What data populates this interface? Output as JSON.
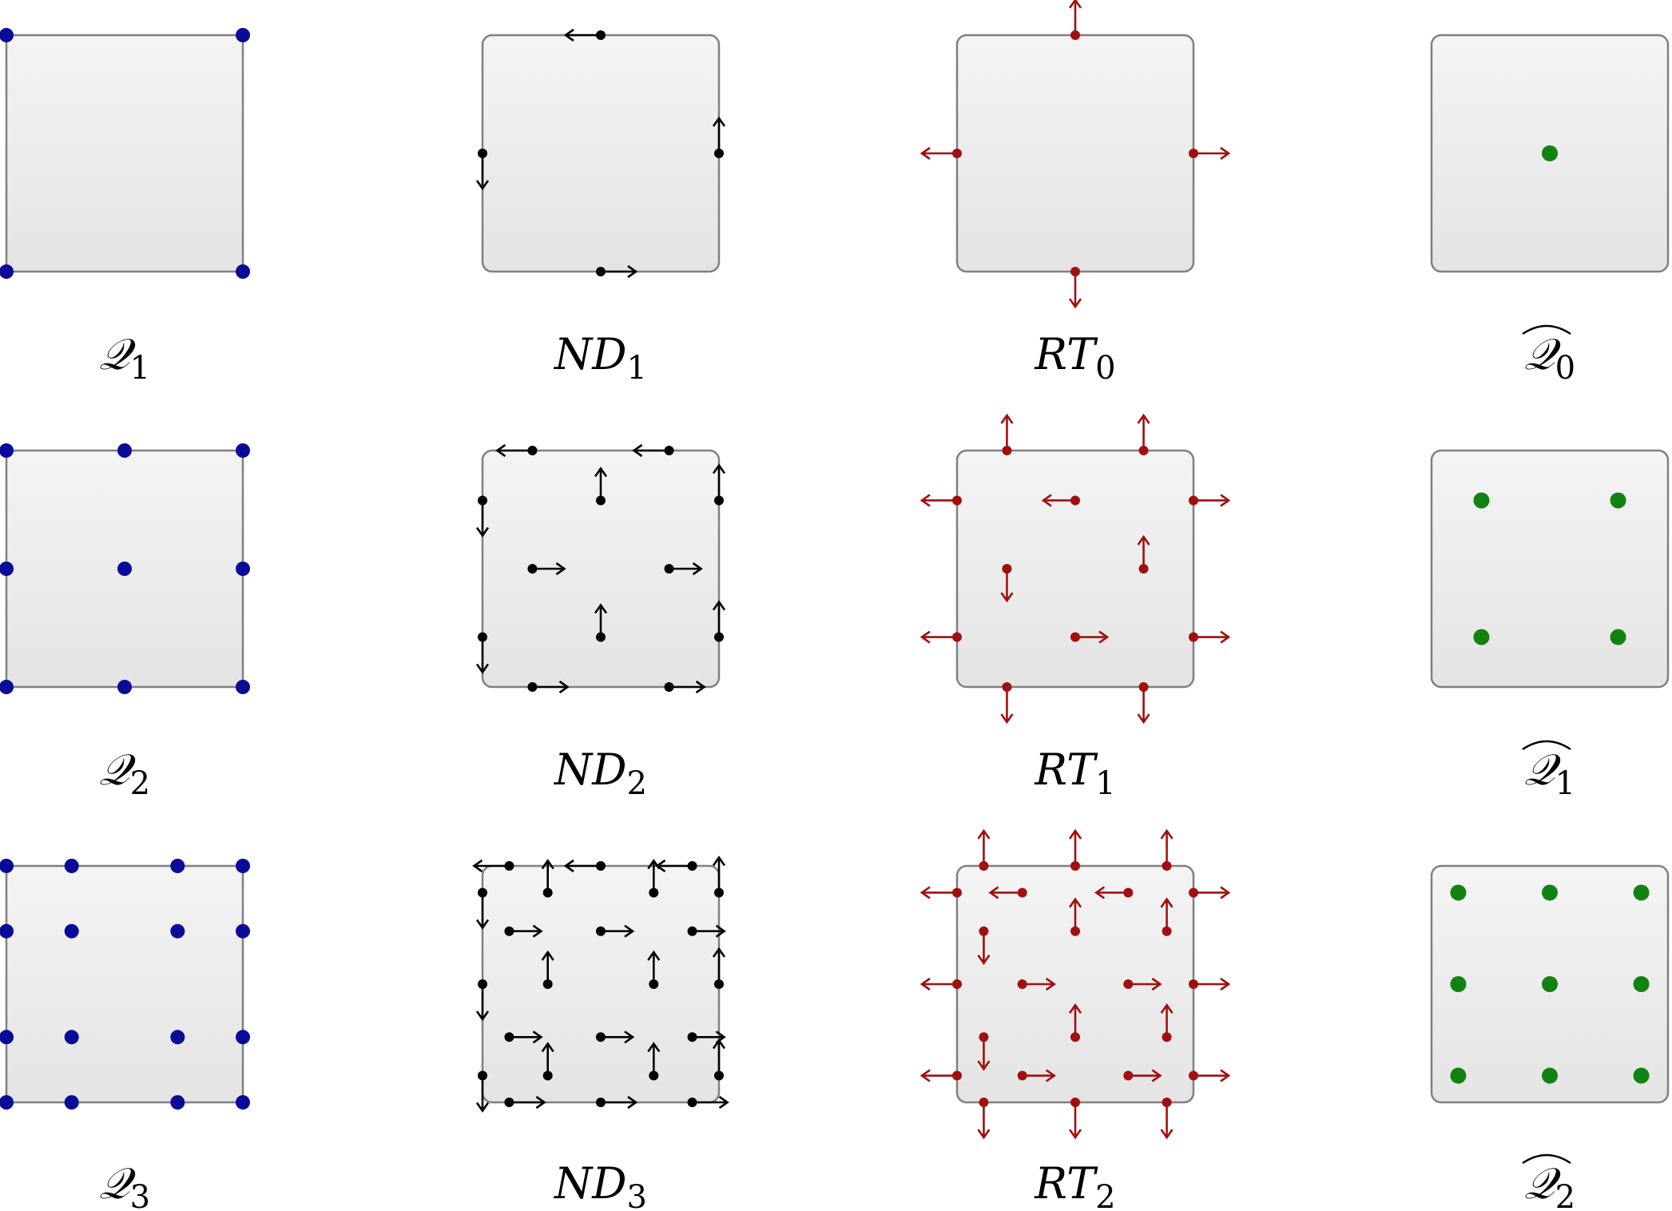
{
  "colors": {
    "q": "#0a0a99",
    "nd": "#000000",
    "rt": "#a10f0f",
    "qhat": "#128212",
    "cell_stroke": "#808080",
    "cell_fill_top": "#f4f4f4",
    "cell_fill_bottom": "#e4e4e4"
  },
  "columns": [
    {
      "key": "q",
      "label_base": "𝒬",
      "hat": false,
      "cell_style": "sharp"
    },
    {
      "key": "nd",
      "label_base": "ND",
      "hat": false,
      "cell_style": "rounded"
    },
    {
      "key": "rt",
      "label_base": "RT",
      "hat": false,
      "cell_style": "rounded"
    },
    {
      "key": "qhat",
      "label_base": "𝒬",
      "hat": true,
      "cell_style": "rounded"
    }
  ],
  "rows": [
    {
      "q": {
        "sub": "1",
        "fractions": [
          0,
          1
        ],
        "interior": false
      },
      "nd": {
        "sub": "1",
        "order": 1
      },
      "rt": {
        "sub": "0",
        "order": 0
      },
      "qhat": {
        "sub": "0",
        "fractions": [
          0.5
        ]
      }
    },
    {
      "q": {
        "sub": "2",
        "fractions": [
          0,
          0.5,
          1
        ],
        "interior": true
      },
      "nd": {
        "sub": "2",
        "order": 2
      },
      "rt": {
        "sub": "1",
        "order": 1
      },
      "qhat": {
        "sub": "1",
        "fractions": [
          0.211,
          0.789
        ]
      }
    },
    {
      "q": {
        "sub": "3",
        "fractions": [
          0,
          0.276,
          0.724,
          1
        ],
        "interior": false
      },
      "nd": {
        "sub": "3",
        "order": 3
      },
      "rt": {
        "sub": "2",
        "order": 2
      },
      "qhat": {
        "sub": "2",
        "fractions": [
          0.113,
          0.5,
          0.887
        ]
      }
    }
  ]
}
